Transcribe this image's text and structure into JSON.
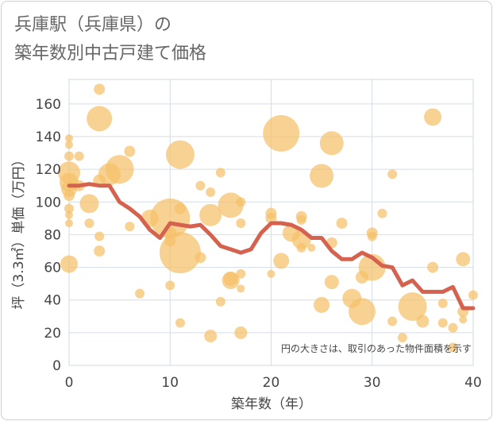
{
  "chart_data": {
    "type": "scatter",
    "title_line1": "兵庫駅（兵庫県）の",
    "title_line2": "築年数別中古戸建て価格",
    "xlabel": "築年数（年）",
    "ylabel": "坪（3.3㎡）単価（万円）",
    "xlim": [
      0,
      40
    ],
    "ylim": [
      0,
      175
    ],
    "xticks": [
      0,
      10,
      20,
      30,
      40
    ],
    "yticks": [
      0,
      20,
      40,
      60,
      80,
      100,
      120,
      140,
      160
    ],
    "note": "円の大きさは、取引のあった物件面積を示す",
    "colors": {
      "bubble": "#f5c06a",
      "line": "#d4624e",
      "grid": "#d4dde6",
      "frame": "#cfcfcf"
    },
    "points": [
      {
        "x": 0,
        "y": 139,
        "s": 5
      },
      {
        "x": 0,
        "y": 135,
        "s": 5
      },
      {
        "x": 0,
        "y": 128,
        "s": 6
      },
      {
        "x": 0,
        "y": 118,
        "s": 14
      },
      {
        "x": 0,
        "y": 112,
        "s": 12
      },
      {
        "x": 0,
        "y": 108,
        "s": 10
      },
      {
        "x": 0,
        "y": 104,
        "s": 7
      },
      {
        "x": 0,
        "y": 96,
        "s": 6
      },
      {
        "x": 0,
        "y": 92,
        "s": 5
      },
      {
        "x": 0,
        "y": 87,
        "s": 5
      },
      {
        "x": 0,
        "y": 62,
        "s": 11
      },
      {
        "x": 1,
        "y": 128,
        "s": 6
      },
      {
        "x": 1,
        "y": 110,
        "s": 7
      },
      {
        "x": 2,
        "y": 99,
        "s": 12
      },
      {
        "x": 2,
        "y": 87,
        "s": 6
      },
      {
        "x": 3,
        "y": 169,
        "s": 7
      },
      {
        "x": 3,
        "y": 151,
        "s": 16
      },
      {
        "x": 3,
        "y": 113,
        "s": 8
      },
      {
        "x": 3,
        "y": 79,
        "s": 6
      },
      {
        "x": 3,
        "y": 70,
        "s": 7
      },
      {
        "x": 4,
        "y": 117,
        "s": 14
      },
      {
        "x": 5,
        "y": 120,
        "s": 18
      },
      {
        "x": 6,
        "y": 131,
        "s": 7
      },
      {
        "x": 6,
        "y": 85,
        "s": 6
      },
      {
        "x": 7,
        "y": 44,
        "s": 6
      },
      {
        "x": 8,
        "y": 90,
        "s": 11
      },
      {
        "x": 10,
        "y": 90,
        "s": 25
      },
      {
        "x": 10,
        "y": 81,
        "s": 8
      },
      {
        "x": 10,
        "y": 76,
        "s": 7
      },
      {
        "x": 10,
        "y": 49,
        "s": 6
      },
      {
        "x": 11,
        "y": 129,
        "s": 18
      },
      {
        "x": 11,
        "y": 96,
        "s": 7
      },
      {
        "x": 11,
        "y": 69,
        "s": 26
      },
      {
        "x": 11,
        "y": 26,
        "s": 6
      },
      {
        "x": 13,
        "y": 110,
        "s": 6
      },
      {
        "x": 13,
        "y": 66,
        "s": 7
      },
      {
        "x": 14,
        "y": 106,
        "s": 6
      },
      {
        "x": 14,
        "y": 92,
        "s": 14
      },
      {
        "x": 14,
        "y": 18,
        "s": 8
      },
      {
        "x": 15,
        "y": 118,
        "s": 6
      },
      {
        "x": 15,
        "y": 39,
        "s": 6
      },
      {
        "x": 16,
        "y": 98,
        "s": 16
      },
      {
        "x": 16,
        "y": 53,
        "s": 9
      },
      {
        "x": 16,
        "y": 52,
        "s": 11
      },
      {
        "x": 17,
        "y": 100,
        "s": 6
      },
      {
        "x": 17,
        "y": 87,
        "s": 6
      },
      {
        "x": 17,
        "y": 56,
        "s": 6
      },
      {
        "x": 17,
        "y": 47,
        "s": 5
      },
      {
        "x": 17,
        "y": 20,
        "s": 8
      },
      {
        "x": 20,
        "y": 93,
        "s": 7
      },
      {
        "x": 20,
        "y": 90,
        "s": 7
      },
      {
        "x": 20,
        "y": 56,
        "s": 5
      },
      {
        "x": 21,
        "y": 142,
        "s": 23
      },
      {
        "x": 21,
        "y": 64,
        "s": 10
      },
      {
        "x": 22,
        "y": 81,
        "s": 11
      },
      {
        "x": 23,
        "y": 91,
        "s": 7
      },
      {
        "x": 23,
        "y": 89,
        "s": 6
      },
      {
        "x": 23,
        "y": 77,
        "s": 12
      },
      {
        "x": 23,
        "y": 72,
        "s": 6
      },
      {
        "x": 24,
        "y": 72,
        "s": 5
      },
      {
        "x": 25,
        "y": 116,
        "s": 15
      },
      {
        "x": 25,
        "y": 37,
        "s": 10
      },
      {
        "x": 26,
        "y": 136,
        "s": 15
      },
      {
        "x": 26,
        "y": 75,
        "s": 7
      },
      {
        "x": 26,
        "y": 51,
        "s": 9
      },
      {
        "x": 27,
        "y": 87,
        "s": 7
      },
      {
        "x": 28,
        "y": 41,
        "s": 12
      },
      {
        "x": 29,
        "y": 54,
        "s": 8
      },
      {
        "x": 29,
        "y": 33,
        "s": 17
      },
      {
        "x": 30,
        "y": 81,
        "s": 7
      },
      {
        "x": 30,
        "y": 79,
        "s": 6
      },
      {
        "x": 30,
        "y": 60,
        "s": 17
      },
      {
        "x": 31,
        "y": 93,
        "s": 6
      },
      {
        "x": 32,
        "y": 117,
        "s": 6
      },
      {
        "x": 32,
        "y": 27,
        "s": 6
      },
      {
        "x": 33,
        "y": 17,
        "s": 6
      },
      {
        "x": 34,
        "y": 36,
        "s": 18
      },
      {
        "x": 35,
        "y": 27,
        "s": 8
      },
      {
        "x": 36,
        "y": 152,
        "s": 11
      },
      {
        "x": 36,
        "y": 60,
        "s": 7
      },
      {
        "x": 37,
        "y": 38,
        "s": 6
      },
      {
        "x": 37,
        "y": 26,
        "s": 6
      },
      {
        "x": 38,
        "y": 23,
        "s": 6
      },
      {
        "x": 38,
        "y": 11,
        "s": 6
      },
      {
        "x": 39,
        "y": 65,
        "s": 9
      },
      {
        "x": 39,
        "y": 33,
        "s": 7
      },
      {
        "x": 39,
        "y": 28,
        "s": 5
      },
      {
        "x": 40,
        "y": 43,
        "s": 6
      }
    ],
    "trend": {
      "x": [
        0,
        1,
        2,
        3,
        4,
        5,
        6,
        7,
        8,
        9,
        10,
        11,
        12,
        13,
        14,
        15,
        16,
        17,
        18,
        19,
        20,
        21,
        22,
        23,
        24,
        25,
        26,
        27,
        28,
        29,
        30,
        31,
        32,
        33,
        34,
        35,
        36,
        37,
        38,
        39,
        40
      ],
      "y": [
        110,
        110,
        111,
        110,
        110,
        100,
        96,
        91,
        83,
        78,
        87,
        86,
        85,
        86,
        80,
        73,
        71,
        69,
        71,
        81,
        87,
        87,
        86,
        83,
        78,
        78,
        70,
        65,
        65,
        69,
        66,
        61,
        60,
        49,
        52,
        45,
        45,
        45,
        48,
        35,
        35
      ]
    }
  }
}
